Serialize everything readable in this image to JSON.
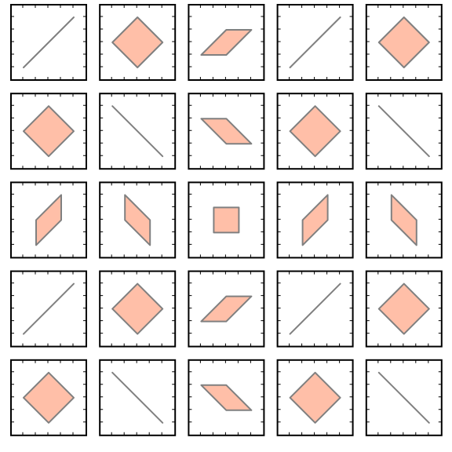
{
  "figure": {
    "rows": 5,
    "cols": 5,
    "colors": {
      "fill": "#ffbfa8",
      "stroke": "#808080",
      "frame": "#000000",
      "background": "#ffffff"
    },
    "panels": [
      {
        "shape": "diagonal-line-up"
      },
      {
        "shape": "diamond"
      },
      {
        "shape": "parallelogram-up"
      },
      {
        "shape": "diagonal-line-up"
      },
      {
        "shape": "diamond"
      },
      {
        "shape": "diamond"
      },
      {
        "shape": "diagonal-line-down"
      },
      {
        "shape": "parallelogram-down"
      },
      {
        "shape": "diamond"
      },
      {
        "shape": "diagonal-line-down"
      },
      {
        "shape": "parallelogram-vertical-up"
      },
      {
        "shape": "parallelogram-vertical-down"
      },
      {
        "shape": "square"
      },
      {
        "shape": "parallelogram-vertical-up"
      },
      {
        "shape": "parallelogram-vertical-down"
      },
      {
        "shape": "diagonal-line-up"
      },
      {
        "shape": "diamond"
      },
      {
        "shape": "parallelogram-up"
      },
      {
        "shape": "diagonal-line-up"
      },
      {
        "shape": "diamond"
      },
      {
        "shape": "diamond"
      },
      {
        "shape": "diagonal-line-down"
      },
      {
        "shape": "parallelogram-down"
      },
      {
        "shape": "diamond"
      },
      {
        "shape": "diagonal-line-down"
      }
    ]
  }
}
